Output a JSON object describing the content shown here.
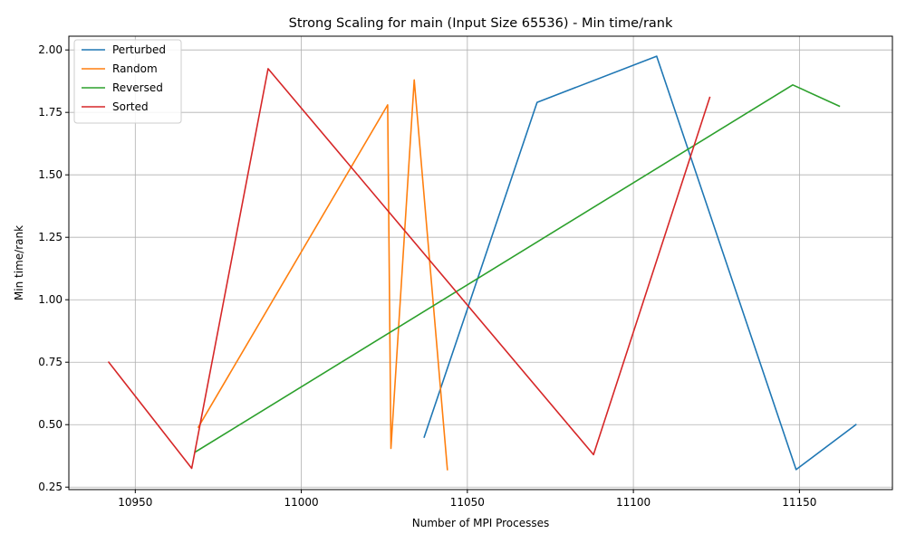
{
  "chart_data": {
    "type": "line",
    "title": "Strong Scaling for main (Input Size 65536) - Min time/rank",
    "xlabel": "Number of MPI Processes",
    "ylabel": "Min time/rank",
    "xlim": [
      10930,
      11178
    ],
    "ylim": [
      0.24,
      2.055
    ],
    "xticks": [
      10950,
      11000,
      11050,
      11100,
      11150
    ],
    "yticks": [
      0.25,
      0.5,
      0.75,
      1.0,
      1.25,
      1.5,
      1.75,
      2.0
    ],
    "xtick_labels": [
      "10950",
      "11000",
      "11050",
      "11100",
      "11150"
    ],
    "ytick_labels": [
      "0.25",
      "0.50",
      "0.75",
      "1.00",
      "1.25",
      "1.50",
      "1.75",
      "2.00"
    ],
    "grid": true,
    "legend_position": "upper-left",
    "series": [
      {
        "name": "Perturbed",
        "color": "#1f77b4",
        "x": [
          11037,
          11071,
          11107,
          11149,
          11167
        ],
        "y": [
          0.45,
          1.79,
          1.975,
          0.32,
          0.5
        ]
      },
      {
        "name": "Random",
        "color": "#ff7f0e",
        "x": [
          10969,
          11026,
          11027,
          11034,
          11044
        ],
        "y": [
          0.49,
          1.78,
          0.405,
          1.88,
          0.32
        ]
      },
      {
        "name": "Reversed",
        "color": "#2ca02c",
        "x": [
          10968,
          11148,
          11162
        ],
        "y": [
          0.39,
          1.86,
          1.775
        ]
      },
      {
        "name": "Sorted",
        "color": "#d62728",
        "x": [
          10942,
          10967,
          10990,
          11088,
          11123
        ],
        "y": [
          0.75,
          0.325,
          1.925,
          0.38,
          1.81
        ]
      }
    ]
  }
}
